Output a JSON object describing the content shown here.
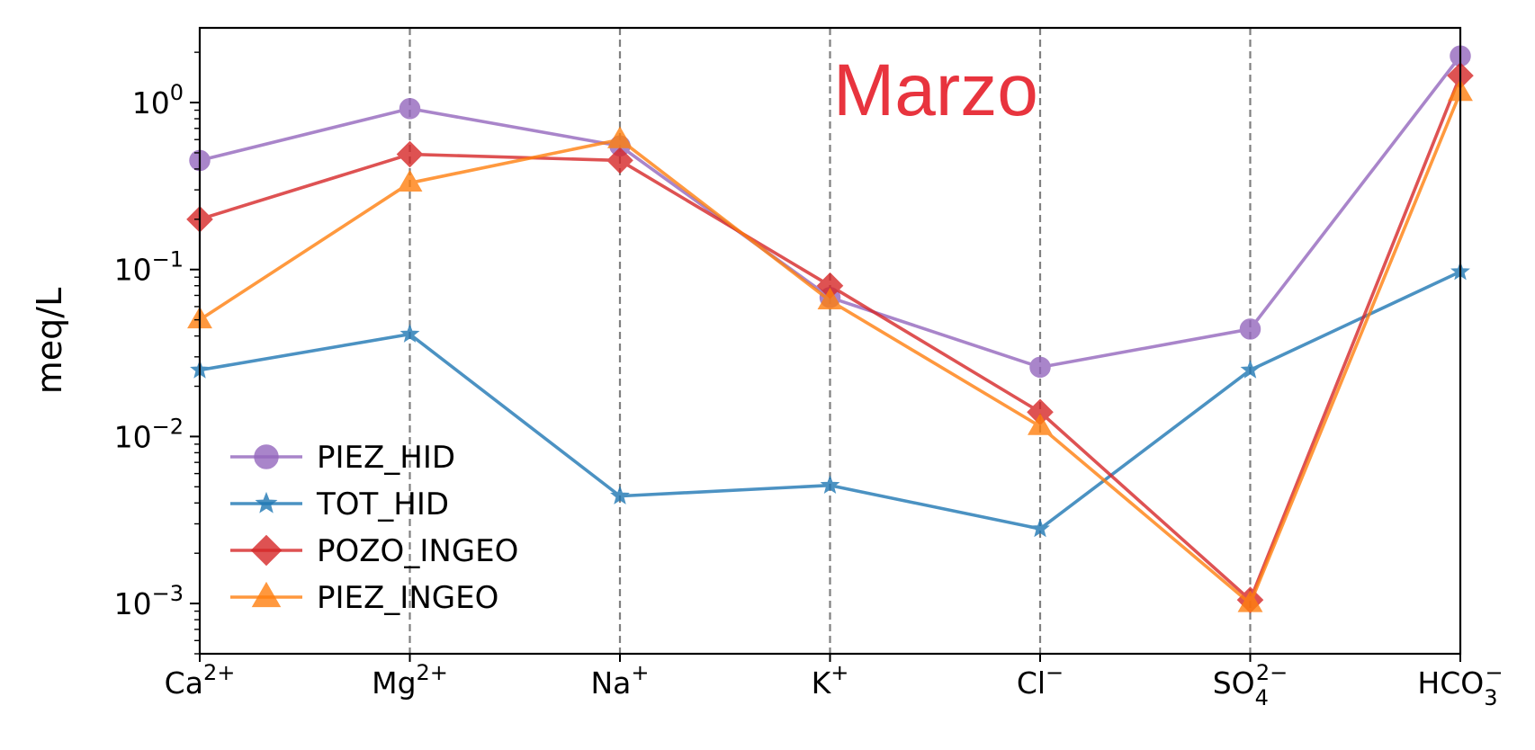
{
  "chart_data": {
    "type": "line",
    "title": "",
    "annotation": "Marzo",
    "annotation_color": "#e8343e",
    "xlabel": "",
    "ylabel": "meq/L",
    "yscale": "log",
    "ylim": [
      0.0005,
      2.8
    ],
    "y_ticks": [
      {
        "value": 1,
        "base": "10",
        "exp": "0"
      },
      {
        "value": 0.1,
        "base": "10",
        "exp": "−1"
      },
      {
        "value": 0.01,
        "base": "10",
        "exp": "−2"
      },
      {
        "value": 0.001,
        "base": "10",
        "exp": "−3"
      }
    ],
    "categories": [
      {
        "base": "Ca",
        "sup": "2+",
        "sub": ""
      },
      {
        "base": "Mg",
        "sup": "2+",
        "sub": ""
      },
      {
        "base": "Na",
        "sup": "+",
        "sub": ""
      },
      {
        "base": "K",
        "sup": "+",
        "sub": ""
      },
      {
        "base": "Cl",
        "sup": "−",
        "sub": ""
      },
      {
        "base": "SO",
        "sup": "2−",
        "sub": "4"
      },
      {
        "base": "HCO",
        "sup": "−",
        "sub": "3"
      }
    ],
    "grid": "vertical dashed at each category",
    "legend_position": "lower-left",
    "series": [
      {
        "name": "PIEZ_HID",
        "color": "#9467bd",
        "marker": "circle",
        "values": [
          0.45,
          0.92,
          0.55,
          0.068,
          0.026,
          0.044,
          1.9
        ]
      },
      {
        "name": "TOT_HID",
        "color": "#1f77b4",
        "marker": "star",
        "values": [
          0.025,
          0.041,
          0.0044,
          0.0051,
          0.0028,
          0.025,
          0.097
        ]
      },
      {
        "name": "POZO_INGEO",
        "color": "#d62728",
        "marker": "diamond",
        "values": [
          0.2,
          0.49,
          0.45,
          0.08,
          0.014,
          0.00105,
          1.45
        ]
      },
      {
        "name": "PIEZ_INGEO",
        "color": "#ff7f0e",
        "marker": "triangle",
        "values": [
          0.05,
          0.33,
          0.6,
          0.065,
          0.0115,
          0.001,
          1.15
        ]
      }
    ]
  }
}
